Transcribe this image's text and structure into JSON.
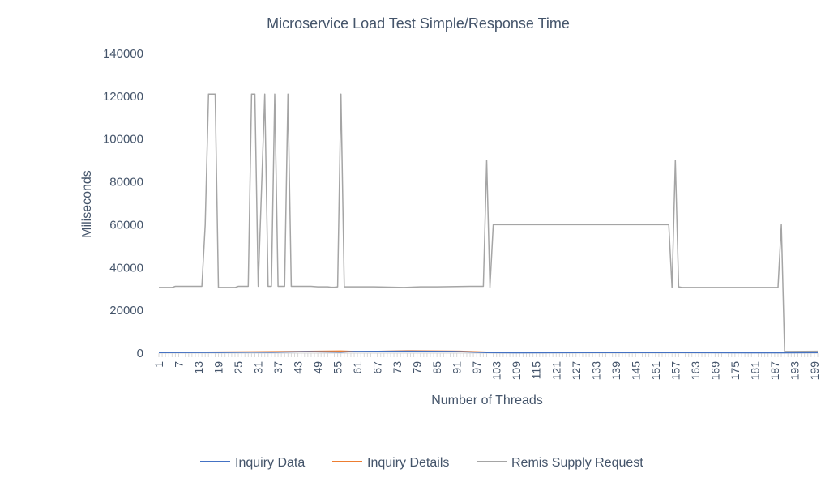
{
  "chart_data": {
    "type": "line",
    "title": "Microservice Load Test Simple/Response Time",
    "xlabel": "Number of Threads",
    "ylabel": "Miliseconds",
    "ylim": [
      0,
      140000
    ],
    "yticks": [
      0,
      20000,
      40000,
      60000,
      80000,
      100000,
      120000,
      140000
    ],
    "y_tick_labels": [
      "0",
      "20000",
      "40000",
      "60000",
      "80000",
      "100000",
      "120000",
      "140000"
    ],
    "x_tick_labels": [
      "1",
      "7",
      "13",
      "19",
      "25",
      "31",
      "37",
      "43",
      "49",
      "55",
      "61",
      "67",
      "73",
      "79",
      "85",
      "91",
      "97",
      "103",
      "109",
      "115",
      "121",
      "127",
      "133",
      "139",
      "145",
      "151",
      "157",
      "163",
      "169",
      "175",
      "181",
      "187",
      "193",
      "199"
    ],
    "x_count": 200,
    "grid": false,
    "legend_position": "bottom",
    "series": [
      {
        "name": "Inquiry Data",
        "color": "#4472c4",
        "points": [
          [
            1,
            300
          ],
          [
            20,
            350
          ],
          [
            29,
            500
          ],
          [
            35,
            400
          ],
          [
            45,
            700
          ],
          [
            56,
            500
          ],
          [
            60,
            800
          ],
          [
            75,
            900
          ],
          [
            90,
            800
          ],
          [
            100,
            300
          ],
          [
            110,
            200
          ],
          [
            130,
            250
          ],
          [
            160,
            300
          ],
          [
            180,
            200
          ],
          [
            190,
            200
          ],
          [
            200,
            300
          ]
        ]
      },
      {
        "name": "Inquiry Details",
        "color": "#ed7d31",
        "points": [
          [
            1,
            400
          ],
          [
            10,
            450
          ],
          [
            30,
            600
          ],
          [
            44,
            800
          ],
          [
            56,
            1000
          ],
          [
            62,
            700
          ],
          [
            76,
            1100
          ],
          [
            92,
            900
          ],
          [
            100,
            500
          ],
          [
            120,
            500
          ],
          [
            150,
            450
          ],
          [
            170,
            400
          ],
          [
            190,
            300
          ],
          [
            200,
            350
          ]
        ]
      },
      {
        "name": "Remis Supply Request",
        "color": "#a5a5a5",
        "points": [
          [
            1,
            30700
          ],
          [
            5,
            30700
          ],
          [
            6,
            31200
          ],
          [
            14,
            31200
          ],
          [
            15,
            60000
          ],
          [
            16,
            121000
          ],
          [
            18,
            121000
          ],
          [
            19,
            30700
          ],
          [
            24,
            30700
          ],
          [
            25,
            31200
          ],
          [
            28,
            31200
          ],
          [
            29,
            121000
          ],
          [
            30,
            121000
          ],
          [
            31,
            31200
          ],
          [
            33,
            121000
          ],
          [
            34,
            31200
          ],
          [
            35,
            31200
          ],
          [
            36,
            121000
          ],
          [
            37,
            31200
          ],
          [
            39,
            31200
          ],
          [
            40,
            121000
          ],
          [
            41,
            31200
          ],
          [
            47,
            31200
          ],
          [
            49,
            31000
          ],
          [
            51,
            31000
          ],
          [
            52,
            31000
          ],
          [
            53,
            30800
          ],
          [
            54,
            30800
          ],
          [
            55,
            31000
          ],
          [
            56,
            121000
          ],
          [
            57,
            31000
          ],
          [
            66,
            31000
          ],
          [
            75,
            30700
          ],
          [
            80,
            31000
          ],
          [
            85,
            31000
          ],
          [
            95,
            31200
          ],
          [
            99,
            31200
          ],
          [
            100,
            90000
          ],
          [
            101,
            30700
          ],
          [
            102,
            60000
          ],
          [
            155,
            60000
          ],
          [
            156,
            30700
          ],
          [
            157,
            90000
          ],
          [
            158,
            31000
          ],
          [
            159,
            30700
          ],
          [
            188,
            30700
          ],
          [
            189,
            60000
          ],
          [
            190,
            800
          ],
          [
            192,
            800
          ],
          [
            200,
            900
          ]
        ]
      }
    ]
  }
}
